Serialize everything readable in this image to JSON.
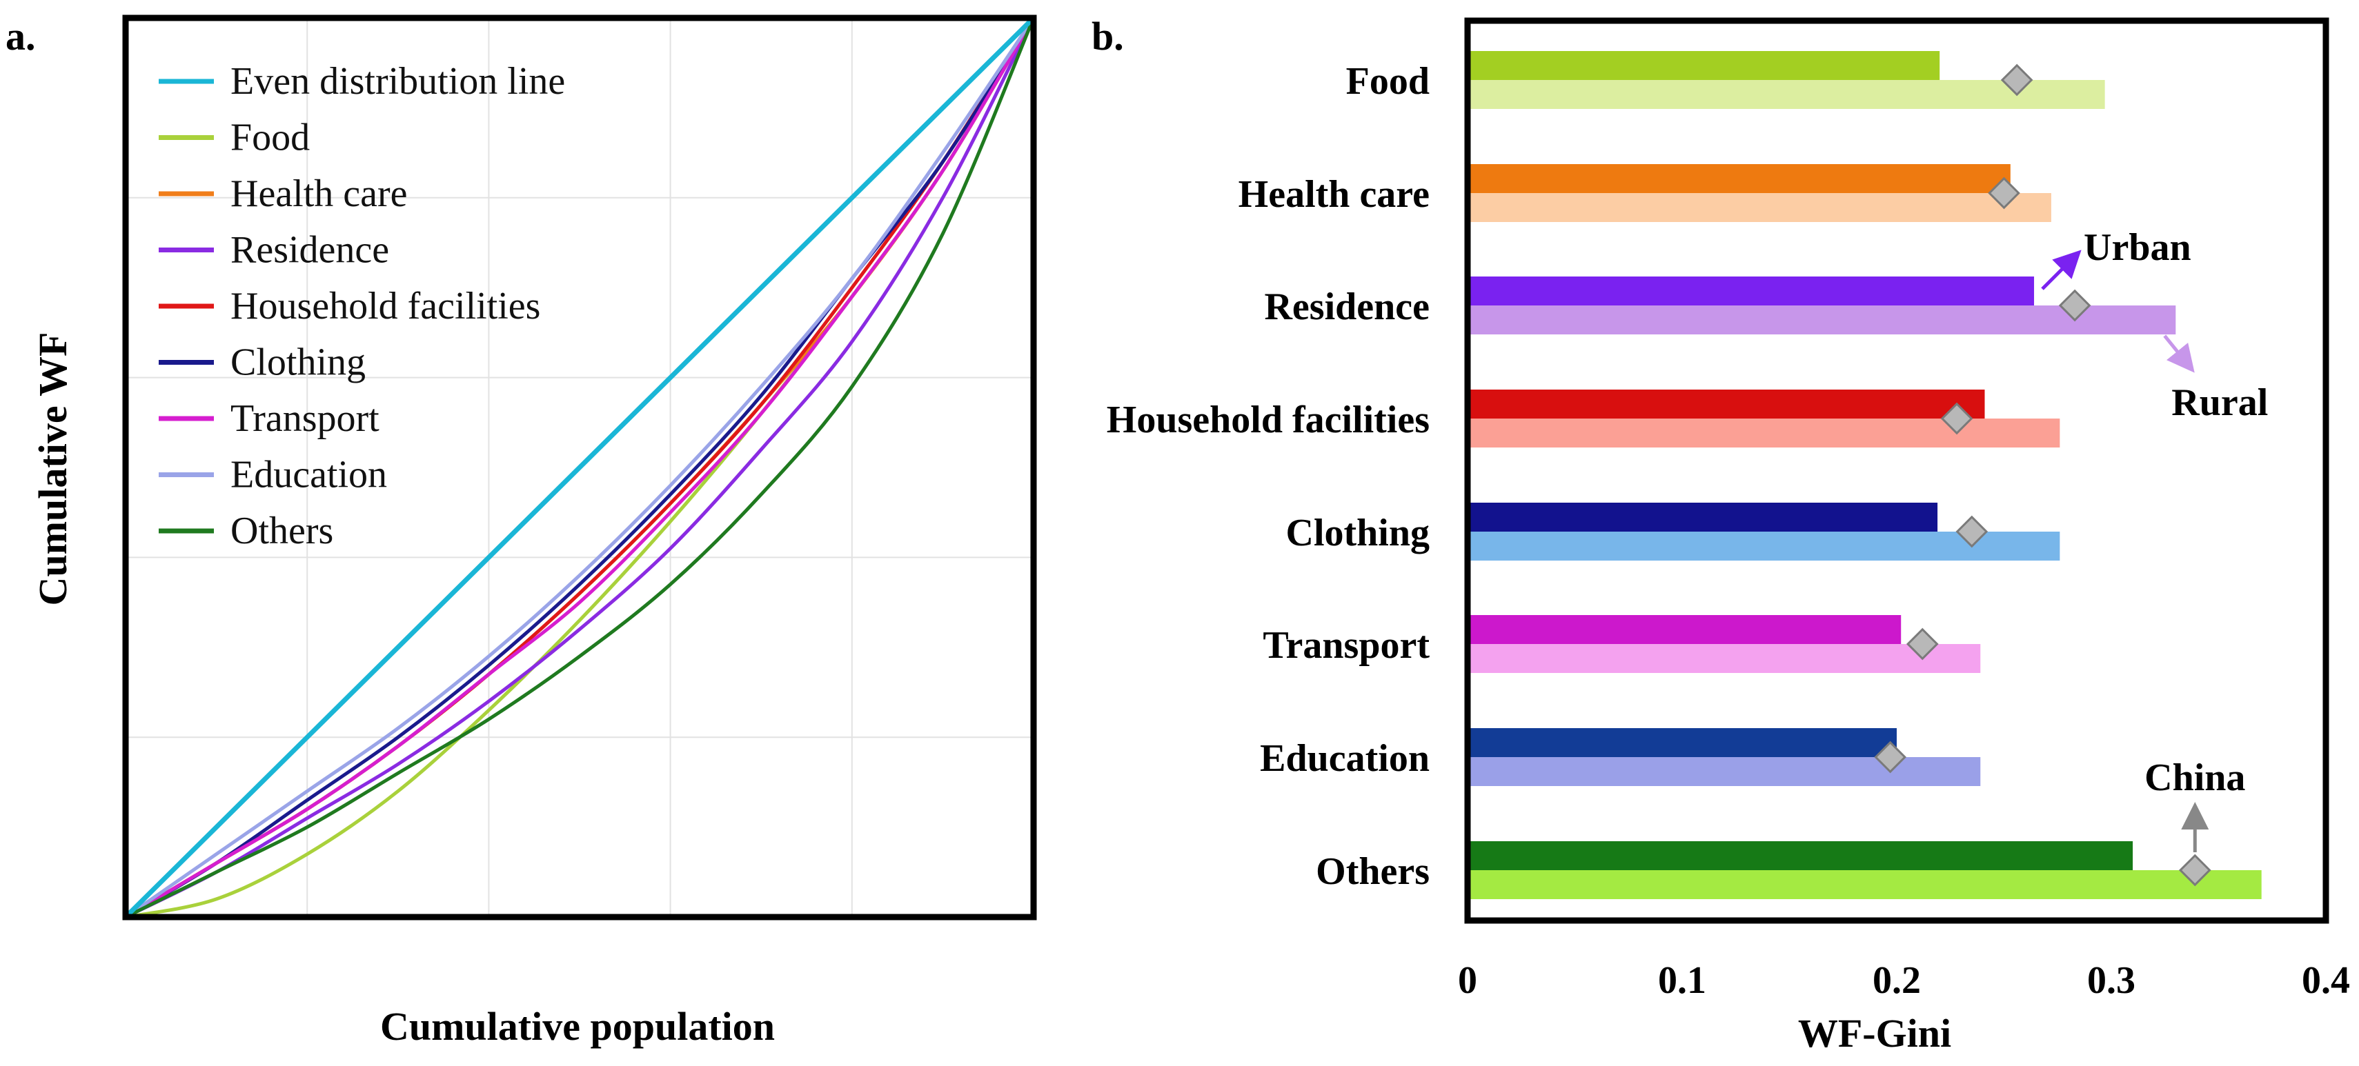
{
  "chart_data": [
    {
      "panel_label": "a.",
      "type": "line",
      "title": "",
      "xlabel": "Cumulative population",
      "ylabel": "Cumulative WF",
      "xlim": [
        0,
        1
      ],
      "ylim": [
        0,
        1
      ],
      "grid": true,
      "legend_position": "top-left",
      "series": [
        {
          "name": "Even distribution line",
          "color": "#1ab6d6",
          "x": [
            0,
            0.2,
            0.4,
            0.6,
            0.8,
            1.0
          ],
          "y": [
            0,
            0.2,
            0.4,
            0.6,
            0.8,
            1.0
          ]
        },
        {
          "name": "Food",
          "color": "#a9d13b",
          "x": [
            0,
            0.1,
            0.2,
            0.3,
            0.4,
            0.5,
            0.6,
            0.7,
            0.8,
            0.9,
            1.0
          ],
          "y": [
            0,
            0.02,
            0.07,
            0.14,
            0.23,
            0.33,
            0.44,
            0.56,
            0.69,
            0.83,
            1.0
          ]
        },
        {
          "name": "Health care",
          "color": "#f07e1b",
          "x": [
            0,
            0.1,
            0.2,
            0.3,
            0.4,
            0.5,
            0.6,
            0.7,
            0.8,
            0.9,
            1.0
          ],
          "y": [
            0,
            0.06,
            0.12,
            0.19,
            0.27,
            0.36,
            0.46,
            0.57,
            0.69,
            0.83,
            1.0
          ]
        },
        {
          "name": "Residence",
          "color": "#8a2be2",
          "x": [
            0,
            0.1,
            0.2,
            0.3,
            0.4,
            0.5,
            0.6,
            0.7,
            0.8,
            0.9,
            1.0
          ],
          "y": [
            0,
            0.05,
            0.11,
            0.17,
            0.24,
            0.32,
            0.41,
            0.52,
            0.64,
            0.8,
            1.0
          ]
        },
        {
          "name": "Household facilities",
          "color": "#e01818",
          "x": [
            0,
            0.1,
            0.2,
            0.3,
            0.4,
            0.5,
            0.6,
            0.7,
            0.8,
            0.9,
            1.0
          ],
          "y": [
            0,
            0.06,
            0.12,
            0.19,
            0.27,
            0.36,
            0.46,
            0.57,
            0.7,
            0.84,
            1.0
          ]
        },
        {
          "name": "Clothing",
          "color": "#1a1a8c",
          "x": [
            0,
            0.1,
            0.2,
            0.3,
            0.4,
            0.5,
            0.6,
            0.7,
            0.8,
            0.9,
            1.0
          ],
          "y": [
            0,
            0.06,
            0.13,
            0.2,
            0.28,
            0.37,
            0.47,
            0.58,
            0.71,
            0.84,
            1.0
          ]
        },
        {
          "name": "Transport",
          "color": "#d61ecf",
          "x": [
            0,
            0.1,
            0.2,
            0.3,
            0.4,
            0.5,
            0.6,
            0.7,
            0.8,
            0.9,
            1.0
          ],
          "y": [
            0,
            0.06,
            0.12,
            0.19,
            0.27,
            0.35,
            0.45,
            0.56,
            0.69,
            0.83,
            1.0
          ]
        },
        {
          "name": "Education",
          "color": "#9aa4e8",
          "x": [
            0,
            0.1,
            0.2,
            0.3,
            0.4,
            0.5,
            0.6,
            0.7,
            0.8,
            0.9,
            1.0
          ],
          "y": [
            0,
            0.07,
            0.14,
            0.21,
            0.29,
            0.38,
            0.48,
            0.59,
            0.71,
            0.85,
            1.0
          ]
        },
        {
          "name": "Others",
          "color": "#1f7a1f",
          "x": [
            0,
            0.1,
            0.2,
            0.3,
            0.4,
            0.5,
            0.6,
            0.7,
            0.8,
            0.9,
            1.0
          ],
          "y": [
            0,
            0.05,
            0.1,
            0.16,
            0.22,
            0.29,
            0.37,
            0.47,
            0.59,
            0.76,
            1.0
          ]
        }
      ]
    },
    {
      "panel_label": "b.",
      "type": "bar",
      "orientation": "horizontal",
      "title": "",
      "xlabel": "WF-Gini",
      "ylabel": "",
      "xlim": [
        0,
        0.4
      ],
      "xticks": [
        0,
        0.1,
        0.2,
        0.3,
        0.4
      ],
      "xtick_labels": [
        "0",
        "0.1",
        "0.2",
        "0.3",
        "0.4"
      ],
      "categories": [
        "Food",
        "Health care",
        "Residence",
        "Household facilities",
        "Clothing",
        "Transport",
        "Education",
        "Others"
      ],
      "series": [
        {
          "name": "Urban",
          "values": [
            0.22,
            0.253,
            0.264,
            0.241,
            0.219,
            0.202,
            0.2,
            0.31
          ],
          "colors": [
            "#a3cf22",
            "#ee7a10",
            "#7a22f0",
            "#d80f0f",
            "#12128e",
            "#cc18cc",
            "#123c96",
            "#167a16"
          ]
        },
        {
          "name": "Rural",
          "values": [
            0.297,
            0.272,
            0.33,
            0.276,
            0.276,
            0.239,
            0.239,
            0.37
          ],
          "colors": [
            "#dceea0",
            "#fccda4",
            "#c796ea",
            "#fba095",
            "#78b6ea",
            "#f4a2ef",
            "#9aa0e8",
            "#a4ea42"
          ]
        },
        {
          "name": "China",
          "marker": "diamond",
          "values": [
            0.256,
            0.25,
            0.283,
            0.228,
            0.235,
            0.212,
            0.197,
            0.339
          ]
        }
      ],
      "annotations": [
        {
          "text": "Urban",
          "color": "#7a22f0"
        },
        {
          "text": "Rural",
          "color": "#c796ea"
        },
        {
          "text": "China",
          "color": "#888888"
        }
      ]
    }
  ]
}
